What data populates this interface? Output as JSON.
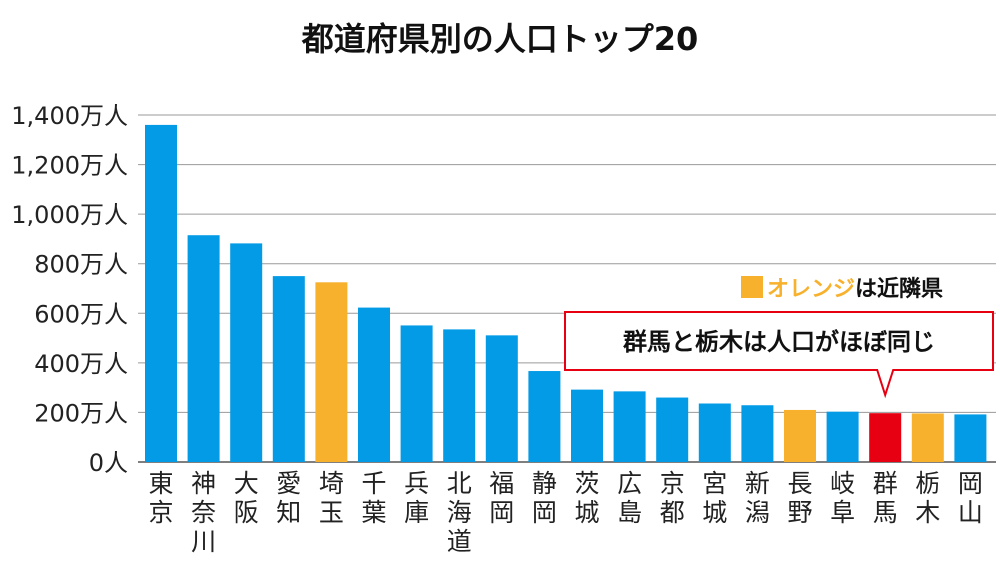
{
  "chart_data": {
    "type": "bar",
    "title": "都道府県別の人口トップ20",
    "xlabel": "",
    "ylabel": "",
    "ylim": [
      0,
      1400
    ],
    "yticks": [
      {
        "value": 0,
        "label": "0人"
      },
      {
        "value": 200,
        "label": "200万人"
      },
      {
        "value": 400,
        "label": "400万人"
      },
      {
        "value": 600,
        "label": "600万人"
      },
      {
        "value": 800,
        "label": "800万人"
      },
      {
        "value": 1000,
        "label": "1,000万人"
      },
      {
        "value": 1200,
        "label": "1,200万人"
      },
      {
        "value": 1400,
        "label": "1,400万人"
      }
    ],
    "grid": true,
    "categories": [
      "東京",
      "神奈川",
      "大阪",
      "愛知",
      "埼玉",
      "千葉",
      "兵庫",
      "北海道",
      "福岡",
      "静岡",
      "茨城",
      "広島",
      "京都",
      "宮城",
      "新潟",
      "長野",
      "岐阜",
      "群馬",
      "栃木",
      "岡山"
    ],
    "values": [
      1360,
      915,
      882,
      750,
      725,
      623,
      551,
      535,
      511,
      367,
      292,
      285,
      260,
      236,
      229,
      210,
      203,
      197,
      196,
      192
    ],
    "bar_groups": [
      "default",
      "default",
      "default",
      "default",
      "neighbor",
      "default",
      "default",
      "default",
      "default",
      "default",
      "default",
      "default",
      "default",
      "default",
      "default",
      "neighbor",
      "default",
      "highlight",
      "neighbor",
      "default"
    ],
    "colors": {
      "default": "#039be5",
      "neighbor": "#f7b12d",
      "highlight": "#e60012"
    },
    "legend": {
      "placement": "top-right",
      "label_colored": "オレンジ",
      "label_plain": "は近隣県",
      "swatch_color": "#f7b12d"
    },
    "annotation": {
      "text": "群馬と栃木は人口がほぼ同じ",
      "border_color": "#e60012",
      "target_category": "群馬"
    }
  }
}
